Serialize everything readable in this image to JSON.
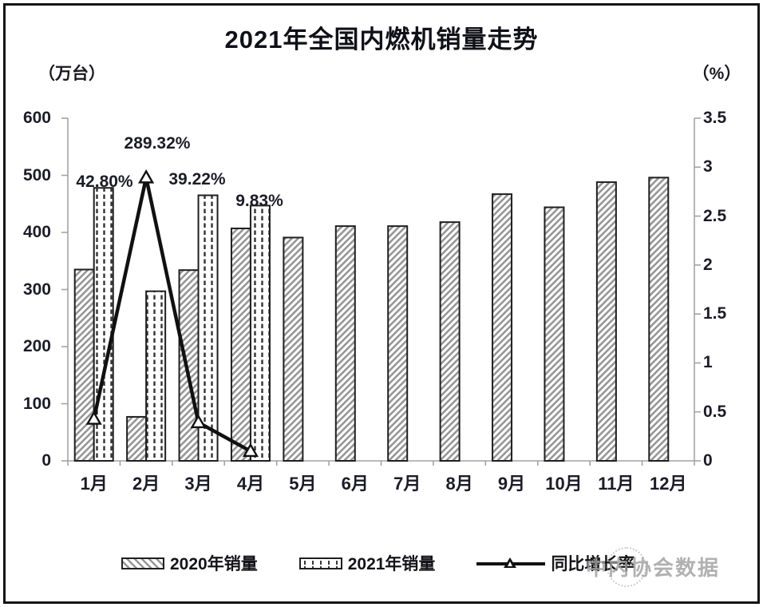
{
  "title": "2021年全国内燃机销量走势",
  "left_axis": {
    "unit": "（万台）",
    "ticks": [
      "600",
      "500",
      "400",
      "300",
      "200",
      "100",
      "0"
    ],
    "min": 0,
    "max": 600
  },
  "right_axis": {
    "unit": "（%）",
    "ticks": [
      "3.5",
      "3",
      "2.5",
      "2",
      "1.5",
      "1",
      "0.5",
      "0"
    ],
    "min": 0,
    "max": 3.5
  },
  "chart_data": {
    "type": "bar",
    "subtype": "combo-bar-line",
    "title": "2021年全国内燃机销量走势",
    "categories": [
      "1月",
      "2月",
      "3月",
      "4月",
      "5月",
      "6月",
      "7月",
      "8月",
      "9月",
      "10月",
      "11月",
      "12月"
    ],
    "series": [
      {
        "name": "2020年销量",
        "type": "bar",
        "pattern": "diagonal-hatch",
        "axis": "left",
        "values": [
          335,
          77,
          334,
          407,
          391,
          411,
          411,
          418,
          467,
          444,
          488,
          496
        ]
      },
      {
        "name": "2021年销量",
        "type": "bar",
        "pattern": "vertical-dash",
        "axis": "left",
        "values": [
          478,
          297,
          465,
          447,
          null,
          null,
          null,
          null,
          null,
          null,
          null,
          null
        ]
      },
      {
        "name": "同比增长率",
        "type": "line",
        "marker": "open-triangle",
        "axis": "right",
        "values_percent": [
          42.8,
          289.32,
          39.22,
          9.83,
          null,
          null,
          null,
          null,
          null,
          null,
          null,
          null
        ],
        "point_labels": [
          "42.80%",
          "289.32%",
          "39.22%",
          "9.83%"
        ]
      }
    ],
    "left_ylabel": "（万台）",
    "right_ylabel": "（%）",
    "left_ylim": [
      0,
      600
    ],
    "right_ylim": [
      0,
      3.5
    ],
    "grid": false,
    "legend_position": "bottom"
  },
  "legend": {
    "items": [
      {
        "label": "2020年销量",
        "swatch": "diagonal-hatch"
      },
      {
        "label": "2021年销量",
        "swatch": "vertical-dash"
      },
      {
        "label": "同比增长率",
        "swatch": "line-triangle"
      }
    ]
  },
  "watermark": "中内协会数据",
  "colors": {
    "text": "#1c1c28",
    "axis_line": "#a3a3a3",
    "bar_border": "#1f1f1f",
    "hatch_stripe": "#979797",
    "dash_stripe": "#333333",
    "growth_line": "#111111",
    "watermark": "#9e9e9e"
  }
}
